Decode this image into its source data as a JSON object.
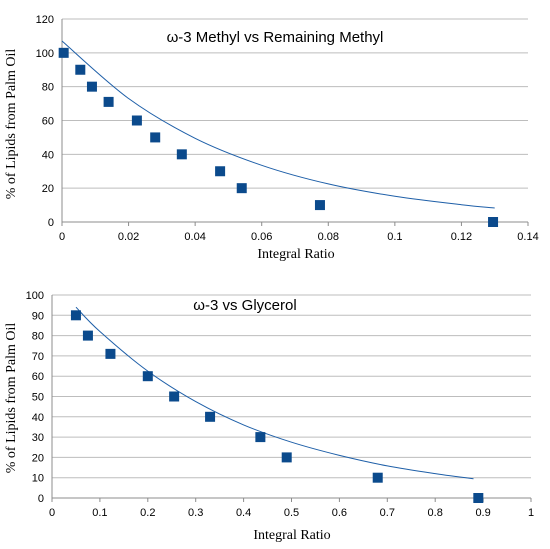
{
  "colors": {
    "marker": "#0b4a8c",
    "trendline": "#1e5fa8",
    "grid": "#bdbdbd"
  },
  "chart_data": [
    {
      "type": "scatter",
      "title": "ω-3 Methyl vs Remaining Methyl",
      "xlabel": "Integral Ratio",
      "ylabel": "% of Lipids from Palm Oil",
      "xlim": [
        0,
        0.14
      ],
      "ylim": [
        0,
        120
      ],
      "xticks": [
        0,
        0.02,
        0.04,
        0.06,
        0.08,
        0.1,
        0.12,
        0.14
      ],
      "xtick_labels": [
        "0",
        "0.02",
        "0.04",
        "0.06",
        "0.08",
        "0.1",
        "0.12",
        "0.14"
      ],
      "yticks": [
        0,
        20,
        40,
        60,
        80,
        100,
        120
      ],
      "ytick_labels": [
        "0",
        "20",
        "40",
        "60",
        "80",
        "100",
        "120"
      ],
      "grid": "horizontal",
      "trendline": "exponential",
      "trendline_points": [
        [
          0.0,
          107
        ],
        [
          0.02,
          73
        ],
        [
          0.04,
          49.5
        ],
        [
          0.06,
          33.5
        ],
        [
          0.08,
          22.5
        ],
        [
          0.1,
          15.2
        ],
        [
          0.12,
          10.2
        ],
        [
          0.13,
          8.3
        ]
      ],
      "x": [
        0.0005,
        0.0055,
        0.009,
        0.014,
        0.0225,
        0.028,
        0.036,
        0.0475,
        0.054,
        0.0775,
        0.1295
      ],
      "y": [
        100,
        90,
        80,
        71,
        60,
        50,
        40,
        30,
        20,
        10,
        0
      ]
    },
    {
      "type": "scatter",
      "title": "ω-3 vs Glycerol",
      "xlabel": "Integral Ratio",
      "ylabel": "% of Lipids from Palm Oil",
      "xlim": [
        0,
        1
      ],
      "ylim": [
        0,
        100
      ],
      "xticks": [
        0,
        0.1,
        0.2,
        0.3,
        0.4,
        0.5,
        0.6,
        0.7,
        0.8,
        0.9,
        1
      ],
      "xtick_labels": [
        "0",
        "0.1",
        "0.2",
        "0.3",
        "0.4",
        "0.5",
        "0.6",
        "0.7",
        "0.8",
        "0.9",
        "1"
      ],
      "yticks": [
        0,
        10,
        20,
        30,
        40,
        50,
        60,
        70,
        80,
        90,
        100
      ],
      "ytick_labels": [
        "0",
        "10",
        "20",
        "30",
        "40",
        "50",
        "60",
        "70",
        "80",
        "90",
        "100"
      ],
      "grid": "horizontal",
      "trendline": "exponential",
      "trendline_points": [
        [
          0.05,
          94
        ],
        [
          0.1,
          82
        ],
        [
          0.2,
          62.5
        ],
        [
          0.3,
          47.5
        ],
        [
          0.4,
          36
        ],
        [
          0.5,
          27.5
        ],
        [
          0.6,
          21
        ],
        [
          0.7,
          15.8
        ],
        [
          0.8,
          12
        ],
        [
          0.88,
          9.5
        ]
      ],
      "x": [
        0.05,
        0.075,
        0.122,
        0.2,
        0.255,
        0.33,
        0.435,
        0.49,
        0.68,
        0.89
      ],
      "y": [
        90,
        80,
        71,
        60,
        50,
        40,
        30,
        20,
        10,
        0
      ]
    }
  ]
}
